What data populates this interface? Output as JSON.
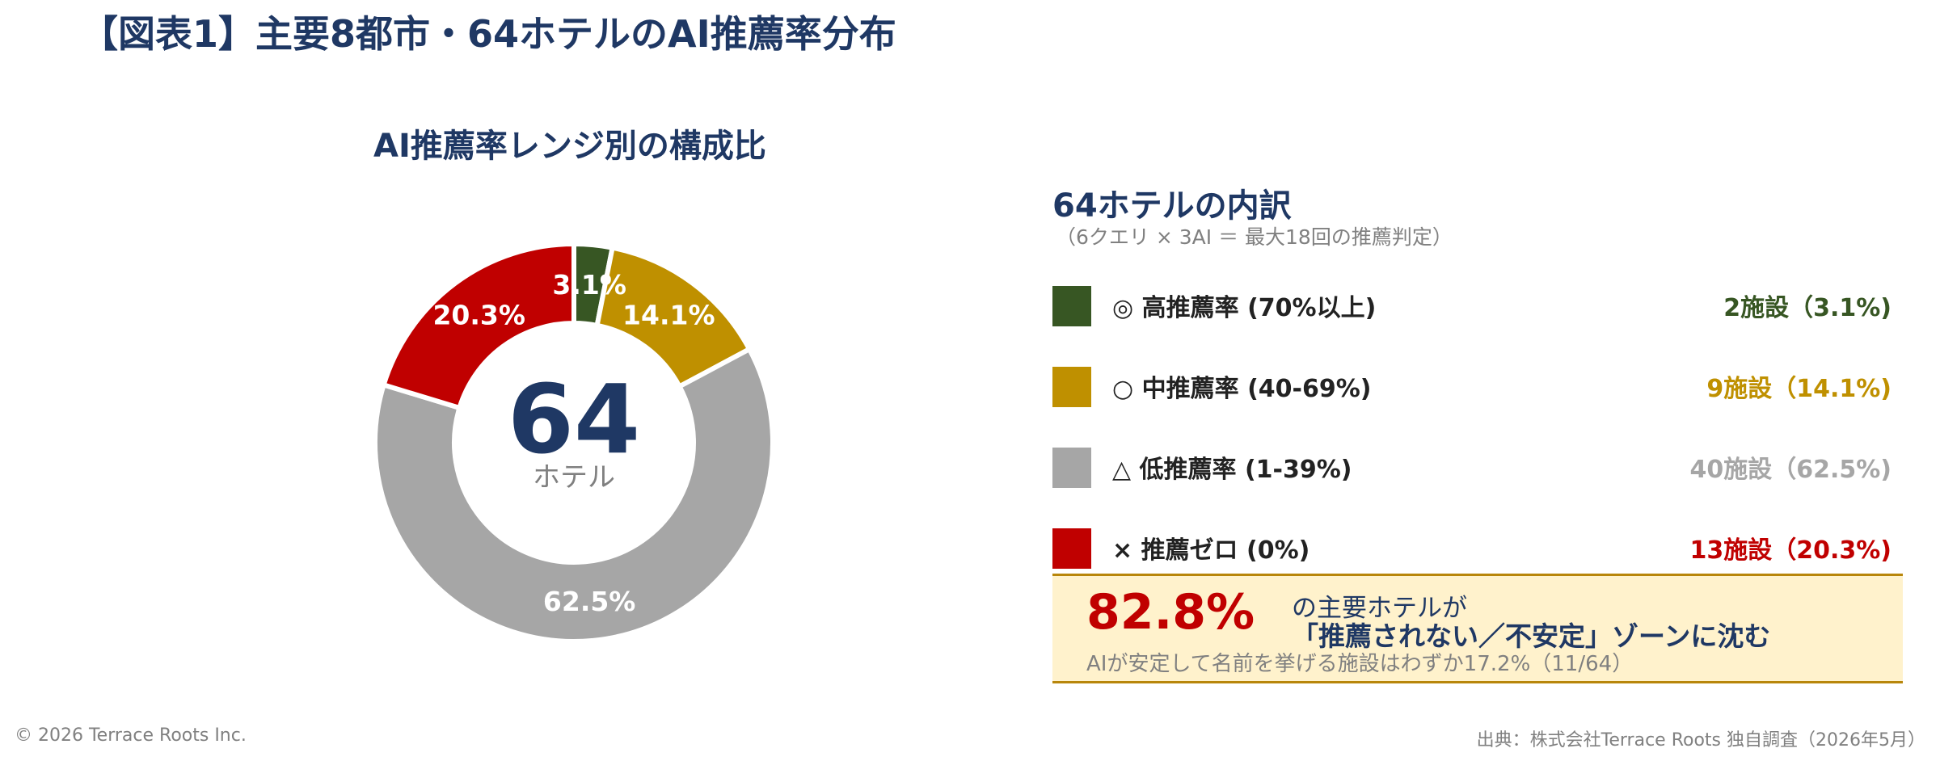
{
  "title": "【図表1】主要8都市・64ホテルのAI推薦率分布",
  "chart_data": {
    "type": "pie",
    "title": "AI推薦率レンジ別の構成比",
    "center_value": "64",
    "center_label": "ホテル",
    "slices": [
      {
        "label": "◎ 高推薦率 (70%以上)",
        "value": 3.1,
        "count_text": "2施設（3.1%)",
        "display": "3.1%",
        "color": "#375623"
      },
      {
        "label": "○ 中推薦率 (40-69%)",
        "value": 14.1,
        "count_text": "9施設（14.1%)",
        "display": "14.1%",
        "color": "#bf9000"
      },
      {
        "label": "△ 低推薦率 (1-39%)",
        "value": 62.5,
        "count_text": "40施設（62.5%)",
        "display": "62.5%",
        "color": "#a6a6a6"
      },
      {
        "label": "× 推薦ゼロ (0%)",
        "value": 20.3,
        "count_text": "13施設（20.3%)",
        "display": "20.3%",
        "color": "#c00000"
      }
    ]
  },
  "breakdown": {
    "title": "64ホテルの内訳",
    "subtitle": "（6クエリ × 3AI ＝ 最大18回の推薦判定）"
  },
  "callout": {
    "big": "82.8%",
    "line1": "の主要ホテルが",
    "line2": "「推薦されない／不安定」ゾーンに沈む",
    "note": "AIが安定して名前を挙げる施設はわずか17.2%（11/64）"
  },
  "footer": {
    "left": "© 2026 Terrace Roots Inc.",
    "right": "出典：株式会社Terrace Roots 独自調査（2026年5月）"
  }
}
